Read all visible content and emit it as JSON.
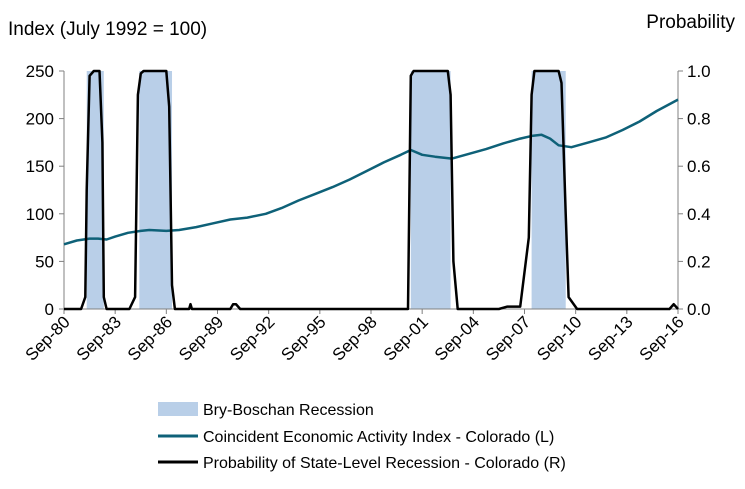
{
  "chart_data": {
    "type": "line",
    "left_axis_title": "Index (July 1992 = 100)",
    "right_axis_title": "Probability",
    "ylim_left": [
      0,
      250
    ],
    "yticks_left": [
      "0",
      "50",
      "100",
      "150",
      "200",
      "250"
    ],
    "ylim_right": [
      0,
      1
    ],
    "yticks_right": [
      "0.0",
      "0.2",
      "0.4",
      "0.6",
      "0.8",
      "1.0"
    ],
    "x_range": [
      "1980-09",
      "2016-09"
    ],
    "x_tick_labels": [
      "Sep-80",
      "Sep-83",
      "Sep-86",
      "Sep-89",
      "Sep-92",
      "Sep-95",
      "Sep-98",
      "Sep-01",
      "Sep-04",
      "Sep-07",
      "Sep-10",
      "Sep-13",
      "Sep-16"
    ],
    "colors": {
      "recession": "#b9cfe8",
      "index": "#0e6178",
      "probability": "#000000"
    },
    "recessions": [
      {
        "start": "1982-01",
        "end": "1983-01"
      },
      {
        "start": "1985-02",
        "end": "1987-01"
      },
      {
        "start": "2001-01",
        "end": "2003-05"
      },
      {
        "start": "2008-02",
        "end": "2010-02"
      }
    ],
    "series": [
      {
        "name": "Coincident Economic Activity Index - Colorado (L)",
        "axis": "left",
        "x": [
          "1980-09",
          "1981-06",
          "1982-03",
          "1982-09",
          "1983-03",
          "1983-09",
          "1984-06",
          "1985-03",
          "1985-09",
          "1986-09",
          "1987-06",
          "1988-06",
          "1989-06",
          "1990-06",
          "1991-06",
          "1992-07",
          "1993-06",
          "1994-06",
          "1995-06",
          "1996-06",
          "1997-06",
          "1998-06",
          "1999-06",
          "2000-06",
          "2001-01",
          "2001-09",
          "2002-06",
          "2003-06",
          "2004-06",
          "2005-06",
          "2006-06",
          "2007-06",
          "2008-03",
          "2008-09",
          "2009-03",
          "2009-09",
          "2010-06",
          "2011-06",
          "2012-06",
          "2013-06",
          "2014-06",
          "2015-06",
          "2016-09"
        ],
        "values": [
          68,
          72,
          74,
          74,
          73,
          76,
          80,
          82,
          83,
          82,
          83,
          86,
          90,
          94,
          96,
          100,
          106,
          114,
          121,
          128,
          136,
          145,
          154,
          162,
          167,
          162,
          160,
          158,
          163,
          168,
          174,
          179,
          182,
          183,
          179,
          172,
          170,
          175,
          180,
          188,
          197,
          208,
          220
        ]
      },
      {
        "name": "Probability of State-Level Recession - Colorado (R)",
        "axis": "right",
        "x": [
          "1980-09",
          "1980-10",
          "1981-09",
          "1981-12",
          "1982-01",
          "1982-03",
          "1982-06",
          "1982-10",
          "1982-12",
          "1983-01",
          "1983-03",
          "1984-07",
          "1984-11",
          "1985-01",
          "1985-03",
          "1985-05",
          "1986-09",
          "1986-11",
          "1987-01",
          "1987-03",
          "1987-06",
          "1988-01",
          "1988-02",
          "1988-03",
          "1988-06",
          "1990-06",
          "1990-08",
          "1990-10",
          "1991-01",
          "2000-11",
          "2001-01",
          "2001-03",
          "2003-03",
          "2003-05",
          "2003-07",
          "2003-10",
          "2004-06",
          "2006-03",
          "2006-09",
          "2007-02",
          "2007-06",
          "2007-12",
          "2008-02",
          "2008-04",
          "2009-09",
          "2009-11",
          "2010-02",
          "2010-04",
          "2010-10",
          "2011-06",
          "2016-03",
          "2016-06",
          "2016-09"
        ],
        "values": [
          0.0,
          0.0,
          0.0,
          0.05,
          0.5,
          0.98,
          1.0,
          1.0,
          0.7,
          0.05,
          0.0,
          0.0,
          0.05,
          0.9,
          0.99,
          1.0,
          1.0,
          0.85,
          0.1,
          0.0,
          0.0,
          0.0,
          0.02,
          0.0,
          0.0,
          0.0,
          0.02,
          0.02,
          0.0,
          0.0,
          0.98,
          1.0,
          1.0,
          0.9,
          0.2,
          0.0,
          0.0,
          0.0,
          0.01,
          0.01,
          0.01,
          0.3,
          0.9,
          1.0,
          1.0,
          0.95,
          0.4,
          0.05,
          0.0,
          0.0,
          0.0,
          0.02,
          0.0
        ]
      }
    ],
    "legend": [
      {
        "label": "Bry-Boschan Recession",
        "kind": "patch"
      },
      {
        "label": "Coincident Economic Activity Index - Colorado (L)",
        "kind": "line-index"
      },
      {
        "label": "Probability of State-Level Recession - Colorado (R)",
        "kind": "line-prob"
      }
    ],
    "legend_position": "bottom",
    "grid": false
  }
}
